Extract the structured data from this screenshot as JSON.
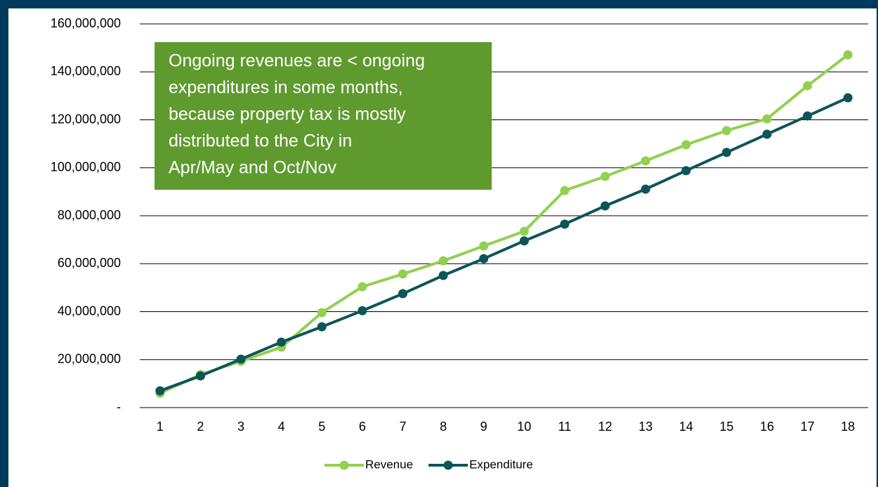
{
  "chart_data": {
    "type": "line",
    "annotation": [
      "Ongoing revenues are < ongoing",
      "expenditures in some months,",
      "because property tax is mostly",
      "distributed to the City in",
      "Apr/May and Oct/Nov"
    ],
    "categories": [
      1,
      2,
      3,
      4,
      5,
      6,
      7,
      8,
      9,
      10,
      11,
      12,
      13,
      14,
      15,
      16,
      17,
      18
    ],
    "series": [
      {
        "name": "Revenue",
        "color": "#92d050",
        "values": [
          6000000,
          13800000,
          19300000,
          25200000,
          39600000,
          50400000,
          55700000,
          61200000,
          67400000,
          73500000,
          90500000,
          96400000,
          102900000,
          109600000,
          115500000,
          120400000,
          134200000,
          147100000
        ]
      },
      {
        "name": "Expenditure",
        "color": "#0c5559",
        "values": [
          7000000,
          13200000,
          20200000,
          27300000,
          33700000,
          40400000,
          47500000,
          55100000,
          62100000,
          69500000,
          76500000,
          84100000,
          91100000,
          98800000,
          106400000,
          114000000,
          121600000,
          129200000
        ]
      }
    ],
    "ylim": [
      0,
      160000000
    ],
    "yticks": [
      {
        "value": 0,
        "label": "-"
      },
      {
        "value": 20000000,
        "label": "20,000,000"
      },
      {
        "value": 40000000,
        "label": "40,000,000"
      },
      {
        "value": 60000000,
        "label": "60,000,000"
      },
      {
        "value": 80000000,
        "label": "80,000,000"
      },
      {
        "value": 100000000,
        "label": "100,000,000"
      },
      {
        "value": 120000000,
        "label": "120,000,000"
      },
      {
        "value": 140000000,
        "label": "140,000,000"
      },
      {
        "value": 160000000,
        "label": "160,000,000"
      }
    ],
    "grid": true,
    "legend": "bottom"
  }
}
